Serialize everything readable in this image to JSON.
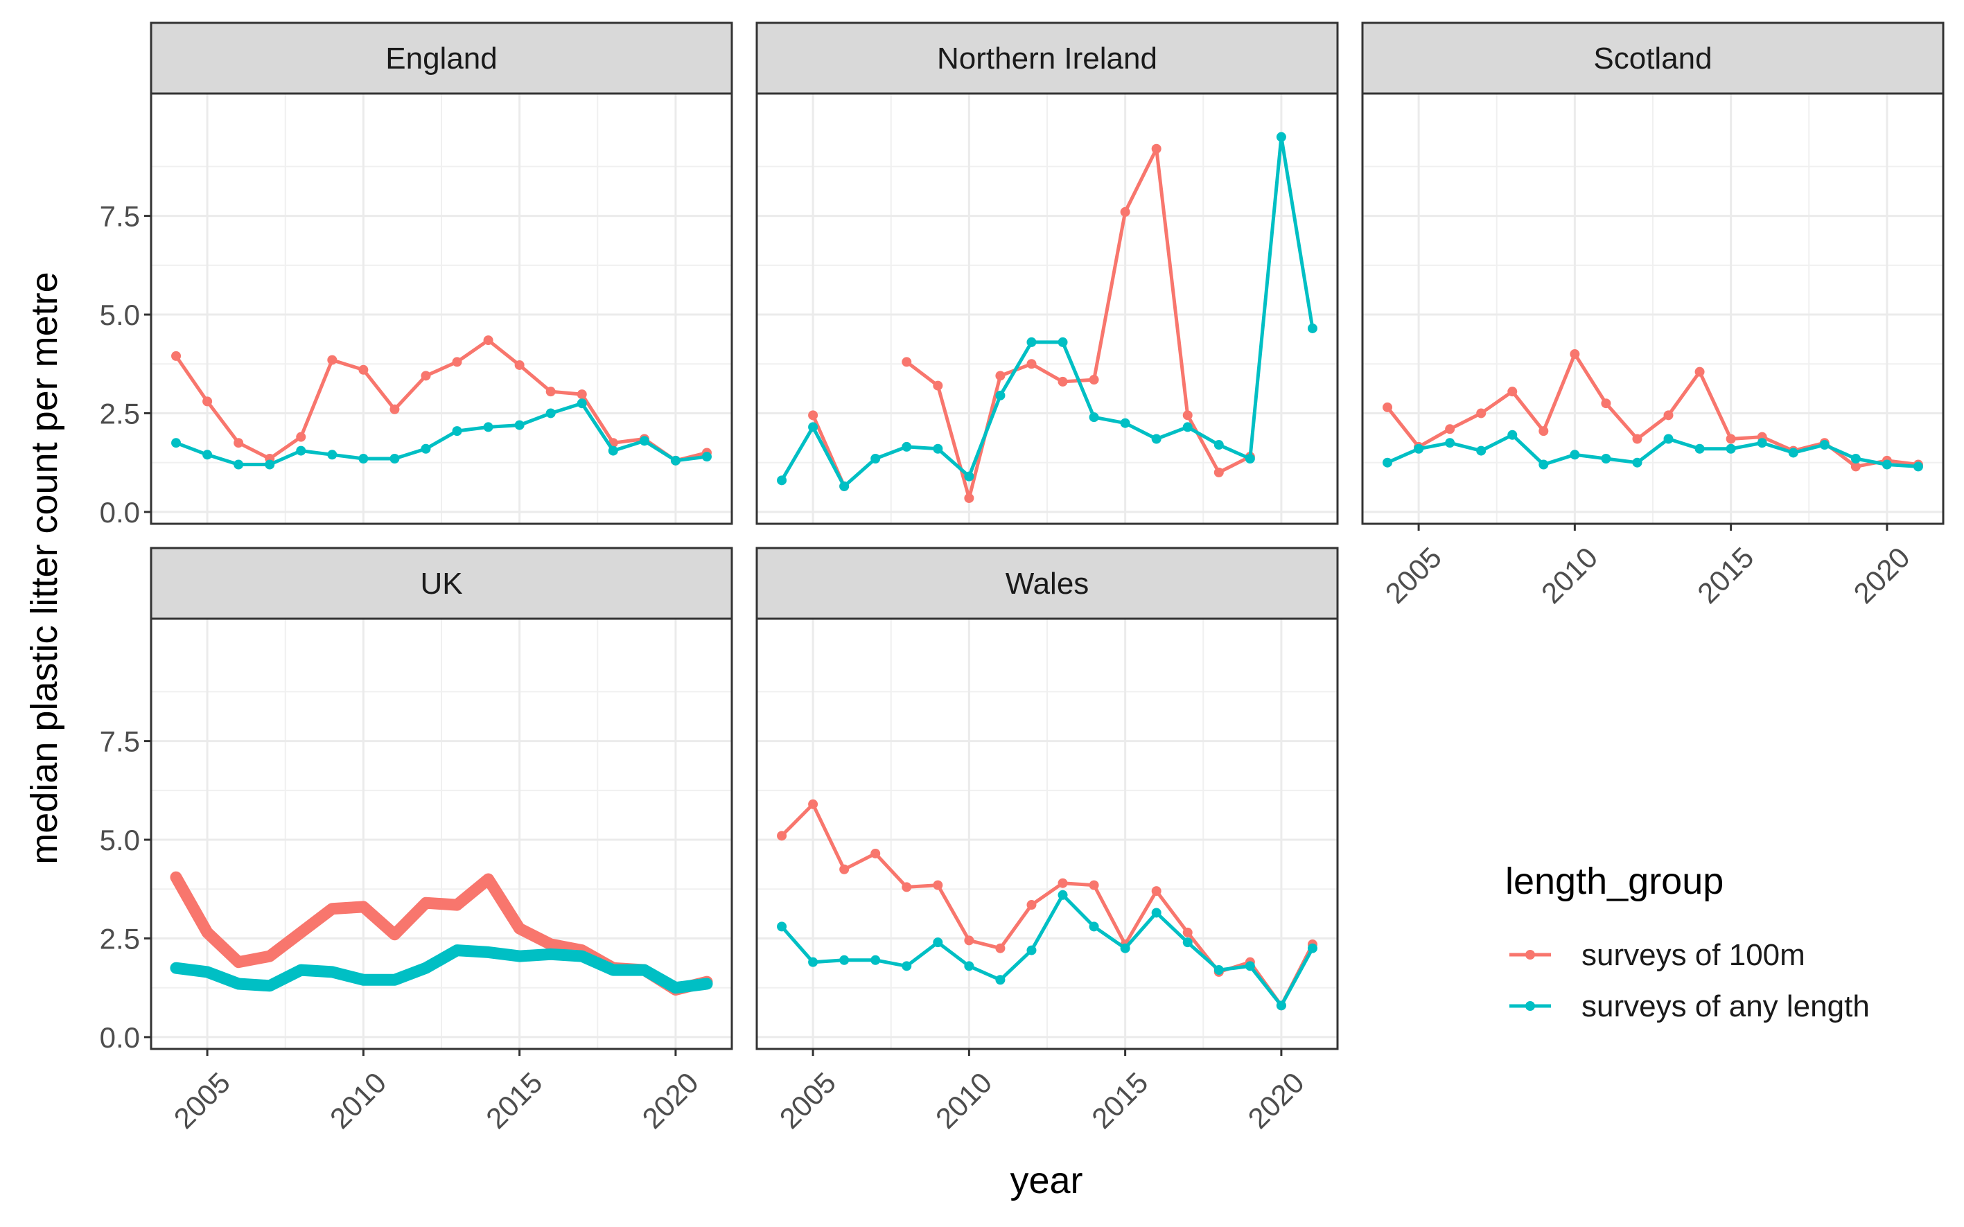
{
  "chart_data": {
    "type": "line",
    "subtitle_style": "faceted small multiples (facet_wrap by nation)",
    "xlabel": "year",
    "ylabel": "median plastic litter count per metre",
    "xlim": [
      2004,
      2021
    ],
    "ylim": [
      0,
      10
    ],
    "x_ticks": [
      2005,
      2010,
      2015,
      2020
    ],
    "y_ticks": [
      0.0,
      2.5,
      5.0,
      7.5
    ],
    "y_tick_labels": [
      "0.0",
      "2.5",
      "5.0",
      "7.5"
    ],
    "x_tick_labels": [
      "2005",
      "2010",
      "2015",
      "2020"
    ],
    "grid": true,
    "legend": {
      "title": "length_group",
      "position": "right",
      "items": [
        {
          "label": "surveys of 100m",
          "color": "#F8766D"
        },
        {
          "label": "surveys of any length",
          "color": "#00BFC4"
        }
      ]
    },
    "x": [
      2004,
      2005,
      2006,
      2007,
      2008,
      2009,
      2010,
      2011,
      2012,
      2013,
      2014,
      2015,
      2016,
      2017,
      2018,
      2019,
      2020,
      2021
    ],
    "facets": [
      {
        "name": "England",
        "series": [
          {
            "name": "surveys of 100m",
            "values": [
              3.95,
              2.8,
              1.75,
              1.35,
              1.9,
              3.85,
              3.6,
              2.6,
              3.45,
              3.8,
              4.35,
              3.72,
              3.05,
              2.98,
              1.75,
              1.85,
              1.3,
              1.5
            ]
          },
          {
            "name": "surveys of any length",
            "values": [
              1.75,
              1.45,
              1.2,
              1.2,
              1.55,
              1.45,
              1.35,
              1.35,
              1.6,
              2.05,
              2.15,
              2.2,
              2.5,
              2.75,
              1.55,
              1.8,
              1.3,
              1.4
            ]
          }
        ]
      },
      {
        "name": "Northern Ireland",
        "series": [
          {
            "name": "surveys of 100m",
            "values": [
              null,
              2.45,
              0.65,
              null,
              3.8,
              3.2,
              0.35,
              3.45,
              3.75,
              3.3,
              3.35,
              7.6,
              9.2,
              2.45,
              1.0,
              1.4,
              null,
              null
            ]
          },
          {
            "name": "surveys of any length",
            "values": [
              0.8,
              2.15,
              0.65,
              1.35,
              1.65,
              1.6,
              0.9,
              2.95,
              4.3,
              4.3,
              2.4,
              2.25,
              1.85,
              2.15,
              1.7,
              1.35,
              9.5,
              4.65
            ]
          }
        ]
      },
      {
        "name": "Scotland",
        "series": [
          {
            "name": "surveys of 100m",
            "values": [
              2.65,
              1.65,
              2.1,
              2.5,
              3.05,
              2.05,
              4.0,
              2.75,
              1.85,
              2.45,
              3.55,
              1.85,
              1.9,
              1.55,
              1.75,
              1.15,
              1.3,
              1.2
            ]
          },
          {
            "name": "surveys of any length",
            "values": [
              1.25,
              1.6,
              1.75,
              1.55,
              1.95,
              1.2,
              1.45,
              1.35,
              1.25,
              1.85,
              1.6,
              1.6,
              1.75,
              1.5,
              1.7,
              1.35,
              1.2,
              1.15
            ]
          }
        ]
      },
      {
        "name": "UK",
        "series": [
          {
            "name": "surveys of 100m",
            "values": [
              4.05,
              2.65,
              1.9,
              2.05,
              2.65,
              3.25,
              3.3,
              2.6,
              3.4,
              3.35,
              4.0,
              2.75,
              2.35,
              2.2,
              1.75,
              1.7,
              1.2,
              1.4
            ]
          },
          {
            "name": "surveys of any length",
            "values": [
              1.75,
              1.65,
              1.35,
              1.3,
              1.7,
              1.65,
              1.45,
              1.45,
              1.75,
              2.2,
              2.15,
              2.05,
              2.1,
              2.05,
              1.7,
              1.7,
              1.25,
              1.35
            ]
          }
        ]
      },
      {
        "name": "Wales",
        "series": [
          {
            "name": "surveys of 100m",
            "values": [
              5.1,
              5.9,
              4.25,
              4.65,
              3.8,
              3.85,
              2.45,
              2.25,
              3.35,
              3.9,
              3.85,
              2.35,
              3.7,
              2.65,
              1.65,
              1.9,
              0.8,
              2.35
            ]
          },
          {
            "name": "surveys of any length",
            "values": [
              2.8,
              1.9,
              1.95,
              1.95,
              1.8,
              2.4,
              1.8,
              1.45,
              2.2,
              3.6,
              2.8,
              2.25,
              3.15,
              2.4,
              1.7,
              1.8,
              0.8,
              2.25
            ]
          }
        ]
      }
    ]
  }
}
